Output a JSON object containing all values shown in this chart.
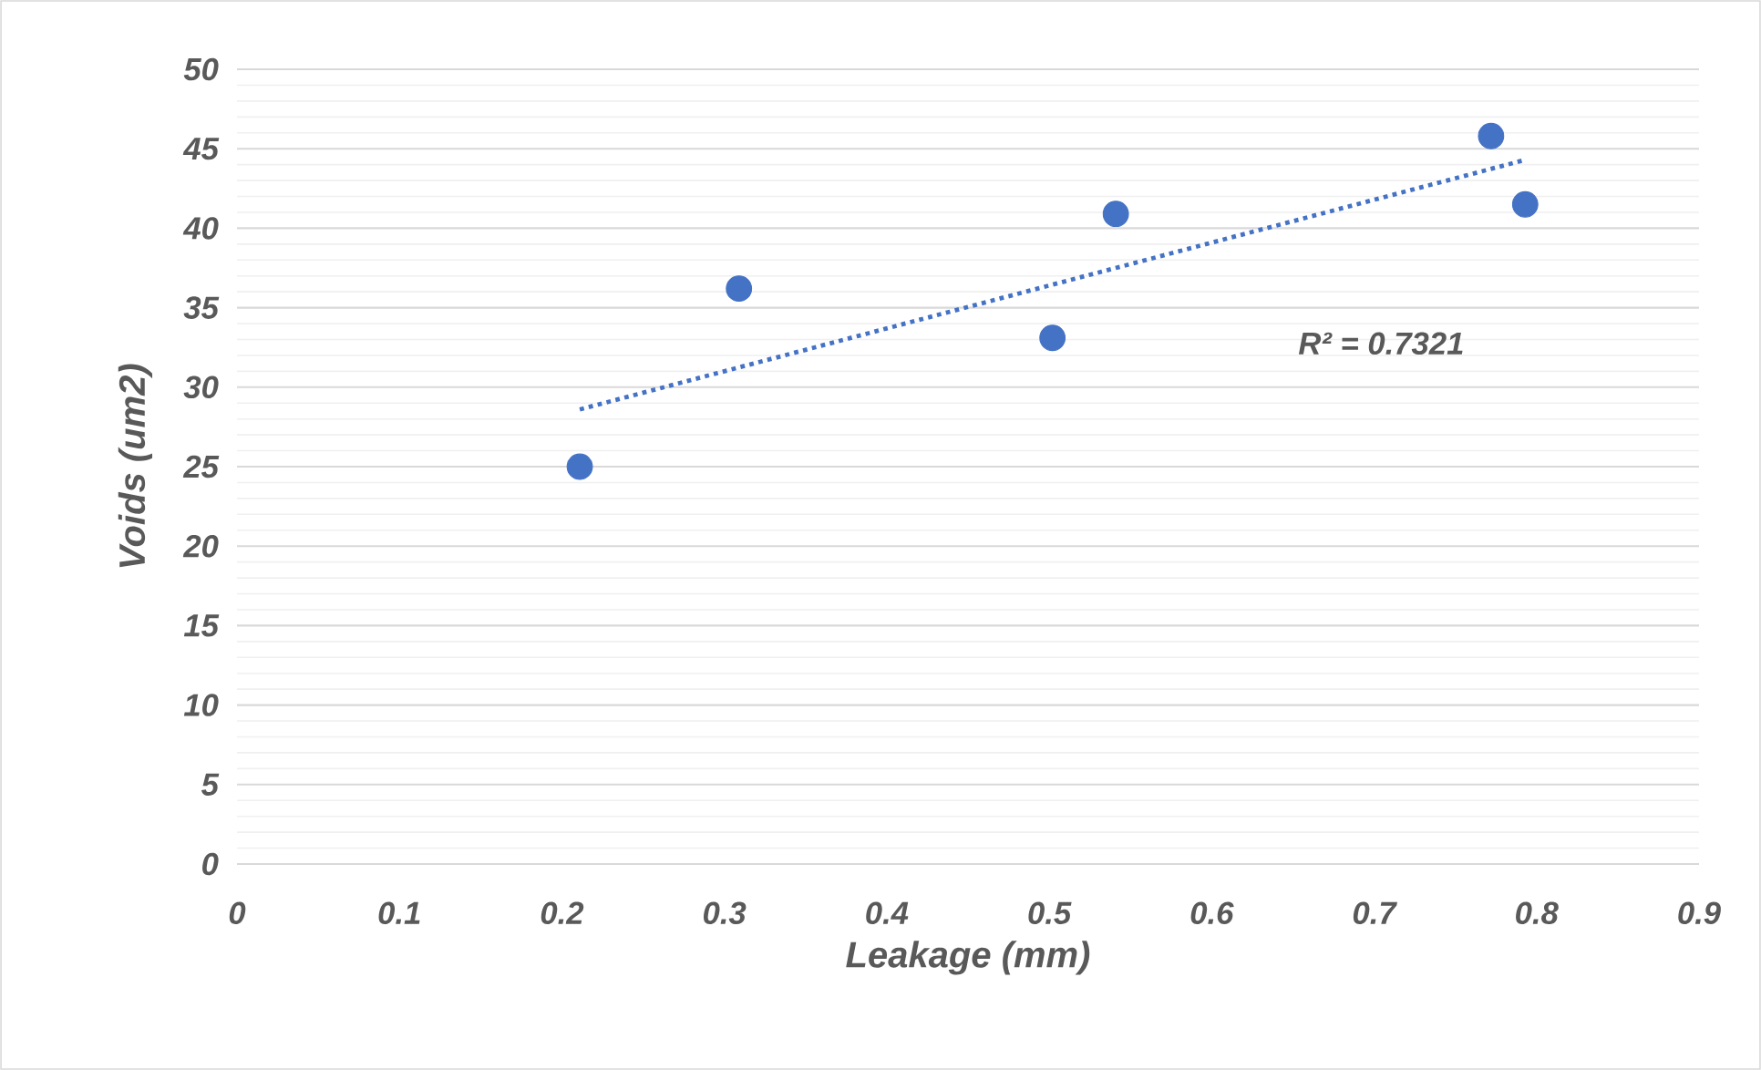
{
  "chart_data": {
    "type": "scatter",
    "xlabel": "Leakage (mm)",
    "ylabel": "Voids (um2)",
    "series": [
      {
        "color": "#4472c4",
        "marker": "circle",
        "x": [
          0.211,
          0.309,
          0.502,
          0.541,
          0.772,
          0.793
        ],
        "values": [
          25,
          36.2,
          33.1,
          40.9,
          45.8,
          41.5
        ]
      },
      {
        "type": "line",
        "color": "#4472c4",
        "line_style": "dotted",
        "marker": "none",
        "x": [
          0.211,
          0.793
        ],
        "values": [
          28.6,
          44.3
        ]
      }
    ],
    "annotations": [
      "R² = 0.7321"
    ],
    "xlim": [
      0,
      0.9
    ],
    "ylim": [
      0,
      50
    ],
    "xticks": [
      0,
      0.1,
      0.2,
      0.3,
      0.4,
      0.5,
      0.6,
      0.7,
      0.8,
      0.9
    ],
    "yticks": [
      0,
      5,
      10,
      15,
      20,
      25,
      30,
      35,
      40,
      45,
      50
    ],
    "grid": "y"
  }
}
